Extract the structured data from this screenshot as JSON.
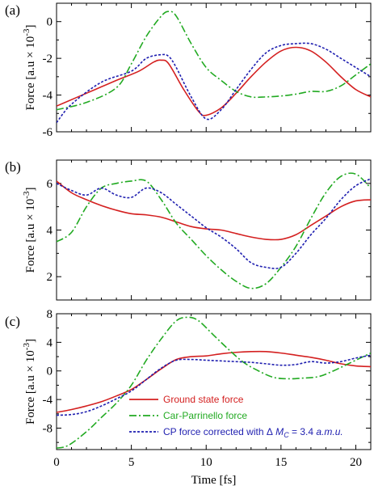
{
  "colors": {
    "ground": "#d42020",
    "cp": "#22aa22",
    "corrected": "#1f1fb0"
  },
  "chart_data": [
    {
      "type": "line",
      "panel_label": "(a)",
      "ylabel": "Force [a.u × 10",
      "ylabel_exp": "-3",
      "ylabel_close": "]",
      "xlim": [
        0,
        21
      ],
      "ylim": [
        -6,
        1
      ],
      "yticks": [
        "0",
        "-2",
        "-4",
        "-6"
      ],
      "ytick_values": [
        0,
        -2,
        -4,
        -6
      ],
      "xticks_shown": false,
      "series": [
        {
          "key": "ground",
          "x": [
            0,
            2,
            4,
            5.5,
            6.5,
            7,
            7.5,
            8.5,
            9.5,
            10,
            11,
            12,
            13,
            14,
            15,
            16,
            17,
            18,
            19,
            20,
            21
          ],
          "y": [
            -4.6,
            -3.9,
            -3.2,
            -2.7,
            -2.2,
            -2.1,
            -2.3,
            -3.7,
            -4.9,
            -5.1,
            -4.7,
            -3.9,
            -3.0,
            -2.2,
            -1.6,
            -1.4,
            -1.6,
            -2.2,
            -3.0,
            -3.7,
            -4.1
          ]
        },
        {
          "key": "cp",
          "x": [
            0,
            2,
            4,
            5,
            6,
            7,
            7.5,
            8,
            9,
            10,
            11,
            12,
            13,
            14,
            15,
            16,
            17,
            18,
            19,
            20,
            21
          ],
          "y": [
            -4.8,
            -4.4,
            -3.6,
            -2.3,
            -0.8,
            0.3,
            0.55,
            0.3,
            -1.2,
            -2.5,
            -3.2,
            -3.8,
            -4.1,
            -4.1,
            -4.05,
            -3.95,
            -3.8,
            -3.8,
            -3.5,
            -2.9,
            -2.3
          ]
        },
        {
          "key": "corrected",
          "x": [
            0,
            1,
            3,
            5,
            6,
            7,
            7.5,
            8,
            9,
            10,
            11,
            12,
            13,
            14,
            15,
            16,
            17,
            18,
            19,
            20,
            21
          ],
          "y": [
            -5.5,
            -4.5,
            -3.3,
            -2.7,
            -2.0,
            -1.8,
            -1.9,
            -2.5,
            -4.1,
            -5.3,
            -4.8,
            -3.7,
            -2.6,
            -1.7,
            -1.3,
            -1.2,
            -1.2,
            -1.5,
            -2.0,
            -2.5,
            -3.0
          ]
        }
      ]
    },
    {
      "type": "line",
      "panel_label": "(b)",
      "ylabel": "Force [a.u × 10",
      "ylabel_exp": "-3",
      "ylabel_close": "]",
      "xlim": [
        0,
        21
      ],
      "ylim": [
        1,
        7
      ],
      "yticks": [
        "6",
        "4",
        "2"
      ],
      "ytick_values": [
        6,
        4,
        2
      ],
      "xticks_shown": false,
      "series": [
        {
          "key": "ground",
          "x": [
            0,
            1,
            2,
            3,
            4,
            5,
            6,
            7,
            8,
            9,
            10,
            11,
            12,
            13,
            14,
            15,
            16,
            17,
            18,
            19,
            20,
            21
          ],
          "y": [
            6.1,
            5.6,
            5.3,
            5.05,
            4.85,
            4.7,
            4.65,
            4.55,
            4.35,
            4.15,
            4.05,
            4.0,
            3.85,
            3.7,
            3.6,
            3.6,
            3.8,
            4.2,
            4.6,
            5.0,
            5.25,
            5.3
          ]
        },
        {
          "key": "cp",
          "x": [
            0,
            1,
            2,
            3,
            4,
            5,
            6,
            7,
            8,
            9,
            10,
            11,
            12,
            13,
            14,
            15,
            16,
            17,
            18,
            19,
            20,
            21
          ],
          "y": [
            3.5,
            3.9,
            5.0,
            5.8,
            6.0,
            6.1,
            6.1,
            5.3,
            4.3,
            3.6,
            2.9,
            2.3,
            1.8,
            1.5,
            1.7,
            2.4,
            3.3,
            4.5,
            5.6,
            6.3,
            6.4,
            5.8
          ]
        },
        {
          "key": "corrected",
          "x": [
            0,
            1,
            2,
            3,
            4,
            5,
            6,
            7,
            8,
            9,
            10,
            11,
            12,
            13,
            14,
            15,
            16,
            17,
            18,
            19,
            20,
            21
          ],
          "y": [
            6.0,
            5.7,
            5.5,
            5.8,
            5.5,
            5.4,
            5.8,
            5.6,
            5.1,
            4.6,
            4.1,
            3.7,
            3.2,
            2.6,
            2.4,
            2.4,
            3.0,
            3.8,
            4.5,
            5.3,
            5.9,
            6.2
          ]
        }
      ]
    },
    {
      "type": "line",
      "panel_label": "(c)",
      "ylabel": "Force [a.u × 10",
      "ylabel_exp": "-3",
      "ylabel_close": "]",
      "xlabel": "Time [fs]",
      "xlim": [
        0,
        21
      ],
      "ylim": [
        -11,
        8
      ],
      "yticks": [
        "8",
        "4",
        "0",
        "-4",
        "-8"
      ],
      "ytick_values": [
        8,
        4,
        0,
        -4,
        -8
      ],
      "xticks": [
        "0",
        "5",
        "10",
        "15",
        "20"
      ],
      "xtick_values": [
        0,
        5,
        10,
        15,
        20
      ],
      "xticks_shown": true,
      "legend": {
        "placement": "bottom-right",
        "entries": [
          {
            "key": "ground",
            "label": "Ground state force"
          },
          {
            "key": "cp",
            "label": "Car-Parrinello force"
          },
          {
            "key": "corrected",
            "label": "CP force corrected with Δ",
            "label_tail": " = 3.4 ",
            "label_unit": "a.m.u."
          }
        ],
        "mass_symbol": "M",
        "mass_sub": "C"
      },
      "series": [
        {
          "key": "ground",
          "x": [
            0,
            1,
            2,
            3,
            4,
            5,
            6,
            7,
            8,
            9,
            10,
            11,
            12,
            13,
            14,
            15,
            16,
            17,
            18,
            19,
            20,
            21
          ],
          "y": [
            -5.8,
            -5.4,
            -4.9,
            -4.3,
            -3.5,
            -2.6,
            -1.2,
            0.3,
            1.6,
            2.0,
            2.1,
            2.4,
            2.6,
            2.7,
            2.7,
            2.5,
            2.2,
            1.9,
            1.5,
            1.0,
            0.7,
            0.6
          ]
        },
        {
          "key": "cp",
          "x": [
            0,
            0.8,
            2,
            3,
            4,
            5,
            6,
            7,
            8,
            8.8,
            9.5,
            10.5,
            11.5,
            12.5,
            13.5,
            14.5,
            15.5,
            16.5,
            17.5,
            18.5,
            19.5,
            20.5,
            21
          ],
          "y": [
            -10.8,
            -10.4,
            -8.5,
            -6.5,
            -4.5,
            -2.0,
            1.5,
            4.5,
            7.0,
            7.5,
            7.0,
            5.0,
            3.0,
            1.2,
            0.0,
            -0.9,
            -1.1,
            -1.0,
            -0.8,
            0.0,
            1.0,
            2.0,
            2.5
          ]
        },
        {
          "key": "corrected",
          "x": [
            0,
            1,
            2,
            3,
            4,
            5,
            6,
            7,
            8,
            9,
            10,
            11,
            12,
            13,
            14,
            15,
            16,
            17,
            18,
            19,
            20,
            21
          ],
          "y": [
            -6.2,
            -6.1,
            -5.7,
            -4.9,
            -3.9,
            -2.8,
            -1.2,
            0.4,
            1.5,
            1.6,
            1.5,
            1.4,
            1.3,
            1.2,
            1.0,
            0.8,
            0.9,
            1.3,
            1.1,
            1.3,
            1.8,
            2.2
          ]
        }
      ]
    }
  ]
}
